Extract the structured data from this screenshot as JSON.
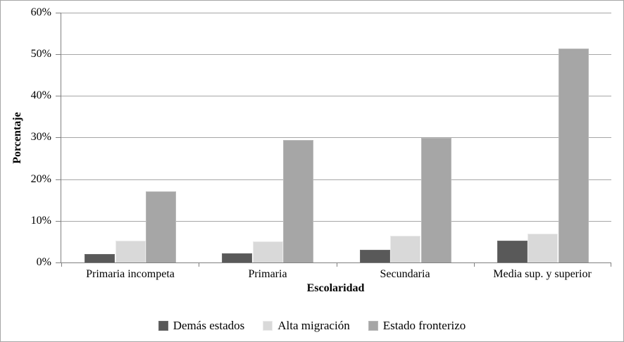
{
  "figure": {
    "background": "#ffffff",
    "border_color": "#a6a6a6",
    "axis_color": "#808080",
    "gridline_color": "#a6a6a6"
  },
  "chart_data": {
    "type": "bar",
    "title": "",
    "categories": [
      "Primaria incompeta",
      "Primaria",
      "Secundaria",
      "Media sup. y superior"
    ],
    "series": [
      {
        "name": "Demás estados",
        "color": "#595959",
        "values": [
          2.1,
          2.2,
          3.0,
          5.2
        ]
      },
      {
        "name": "Alta migración",
        "color": "#d9d9d9",
        "values": [
          5.3,
          5.1,
          6.4,
          7.0
        ]
      },
      {
        "name": "Estado fronterizo",
        "color": "#a6a6a6",
        "values": [
          17.1,
          29.4,
          29.9,
          51.3
        ]
      }
    ],
    "xlabel": "Escolaridad",
    "ylabel": "Porcentaje",
    "ylim": [
      0,
      60
    ],
    "y_tick_step": 10,
    "y_tick_labels": [
      "0%",
      "10%",
      "20%",
      "30%",
      "40%",
      "50%",
      "60%"
    ],
    "grid": true,
    "legend_position": "bottom"
  }
}
